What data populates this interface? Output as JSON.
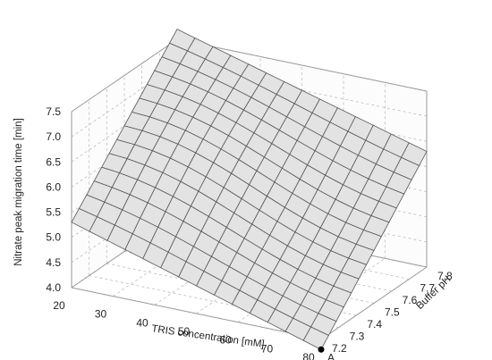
{
  "chart_data": {
    "type": "surface",
    "xlabel": "TRIS concentration [mM]",
    "ylabel": "Buffer pH",
    "zlabel": "Nitrate peak migration time [min]",
    "x_ticks": [
      "20",
      "30",
      "40",
      "50",
      "60",
      "70",
      "80"
    ],
    "y_ticks": [
      "7.2",
      "7.3",
      "7.4",
      "7.5",
      "7.6",
      "7.7",
      "7.8"
    ],
    "z_ticks": [
      "4.0",
      "4.5",
      "5.0",
      "5.5",
      "6.0",
      "6.5",
      "7.0",
      "7.5"
    ],
    "xlim": [
      20,
      80
    ],
    "ylim": [
      7.2,
      7.8
    ],
    "zlim": [
      4.0,
      7.5
    ],
    "grid": true,
    "corner_values": {
      "tris_20_ph_7_2": 5.3,
      "tris_80_ph_7_2": 3.8,
      "tris_20_ph_7_8": 7.7,
      "tris_80_ph_7_8": 6.3
    },
    "point": {
      "label": "A",
      "x": 80,
      "y": 7.2,
      "z": 3.8
    }
  }
}
